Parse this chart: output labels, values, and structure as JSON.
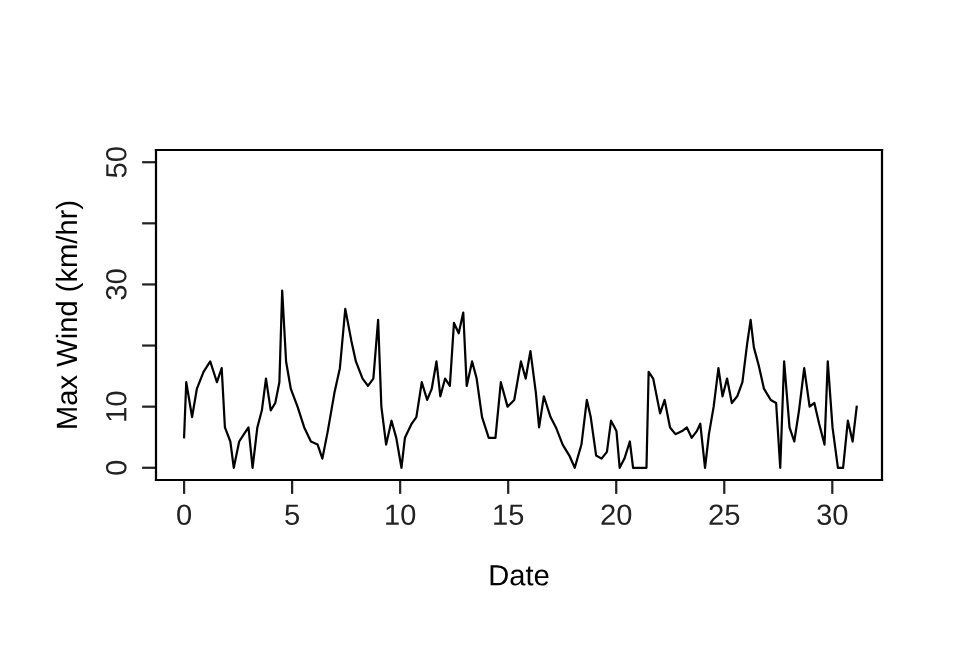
{
  "chart_data": {
    "type": "line",
    "xlabel": "Date",
    "ylabel": "Max Wind (km/hr)",
    "x": [
      0,
      0.1,
      0.37,
      0.59,
      0.9,
      1.21,
      1.52,
      1.74,
      1.89,
      2.14,
      2.3,
      2.55,
      2.77,
      2.98,
      3.17,
      3.39,
      3.6,
      3.79,
      4.01,
      4.22,
      4.41,
      4.54,
      4.72,
      4.94,
      5.25,
      5.56,
      5.87,
      6.18,
      6.4,
      6.65,
      6.96,
      7.21,
      7.46,
      7.74,
      7.95,
      8.26,
      8.51,
      8.76,
      8.98,
      9.13,
      9.35,
      9.6,
      9.82,
      10.06,
      10.22,
      10.53,
      10.75,
      11.0,
      11.25,
      11.46,
      11.68,
      11.86,
      12.08,
      12.3,
      12.49,
      12.71,
      12.92,
      13.08,
      13.33,
      13.54,
      13.79,
      14.1,
      14.41,
      14.66,
      14.97,
      15.28,
      15.59,
      15.81,
      16.03,
      16.28,
      16.43,
      16.65,
      16.96,
      17.21,
      17.52,
      17.83,
      18.08,
      18.39,
      18.64,
      18.82,
      19.07,
      19.32,
      19.57,
      19.76,
      20.01,
      20.16,
      20.38,
      20.63,
      20.78,
      21.4,
      21.5,
      21.71,
      22.03,
      22.24,
      22.49,
      22.74,
      23.05,
      23.27,
      23.49,
      23.73,
      23.89,
      24.11,
      24.29,
      24.51,
      24.73,
      24.92,
      25.13,
      25.35,
      25.6,
      25.84,
      26.06,
      26.22,
      26.37,
      26.59,
      26.84,
      27.15,
      27.4,
      27.59,
      27.77,
      28.02,
      28.24,
      28.46,
      28.7,
      28.95,
      29.17,
      29.39,
      29.64,
      29.79,
      30.01,
      30.26,
      30.5,
      30.72,
      30.94,
      31.13
    ],
    "series": [
      {
        "color": "#000000",
        "values": [
          5,
          14,
          8.3,
          12.9,
          15.7,
          17.4,
          14,
          16.3,
          6.6,
          4.3,
          0,
          4.3,
          5.5,
          6.6,
          0,
          6.6,
          9.4,
          14.6,
          9.4,
          10.6,
          14,
          29,
          17.4,
          12.9,
          10,
          6.6,
          4.3,
          3.8,
          1.5,
          6,
          12.3,
          16.3,
          26,
          20.8,
          17.4,
          14.6,
          13.4,
          14.6,
          24.2,
          10,
          3.8,
          7.7,
          4.9,
          0,
          4.9,
          7.2,
          8.3,
          14,
          11.1,
          12.9,
          17.4,
          11.7,
          14.6,
          13.4,
          23.7,
          22,
          25.4,
          13.4,
          17.4,
          14.6,
          8.3,
          4.9,
          4.9,
          14,
          10,
          11.1,
          17.4,
          14.6,
          19.1,
          12.3,
          6.6,
          11.7,
          8.3,
          6.6,
          3.8,
          2,
          0,
          3.8,
          11.1,
          8.3,
          2,
          1.5,
          2.6,
          7.7,
          6,
          0,
          1.5,
          4.3,
          0,
          0,
          15.7,
          14.6,
          8.9,
          11.1,
          6.6,
          5.5,
          6,
          6.6,
          4.9,
          6,
          7.2,
          0,
          5.5,
          10,
          16.3,
          11.7,
          14.6,
          10.6,
          11.7,
          14,
          20.3,
          24.2,
          19.7,
          16.8,
          12.9,
          11.1,
          10.6,
          0,
          17.4,
          6.6,
          4.3,
          9.4,
          16.3,
          10,
          10.6,
          7.2,
          3.8,
          17.4,
          6.6,
          0,
          0,
          7.7,
          4.3,
          10
        ]
      }
    ],
    "xlim": [
      -1.3,
      32.3
    ],
    "ylim": [
      -2,
      52
    ],
    "xticks": [
      0,
      5,
      10,
      15,
      20,
      25,
      30
    ],
    "yticks": [
      0,
      10,
      {
        "value": 20,
        "label": null
      },
      30,
      {
        "value": 40,
        "label": null
      },
      50
    ],
    "grid": false,
    "line_style": "solid",
    "marker": "none"
  }
}
